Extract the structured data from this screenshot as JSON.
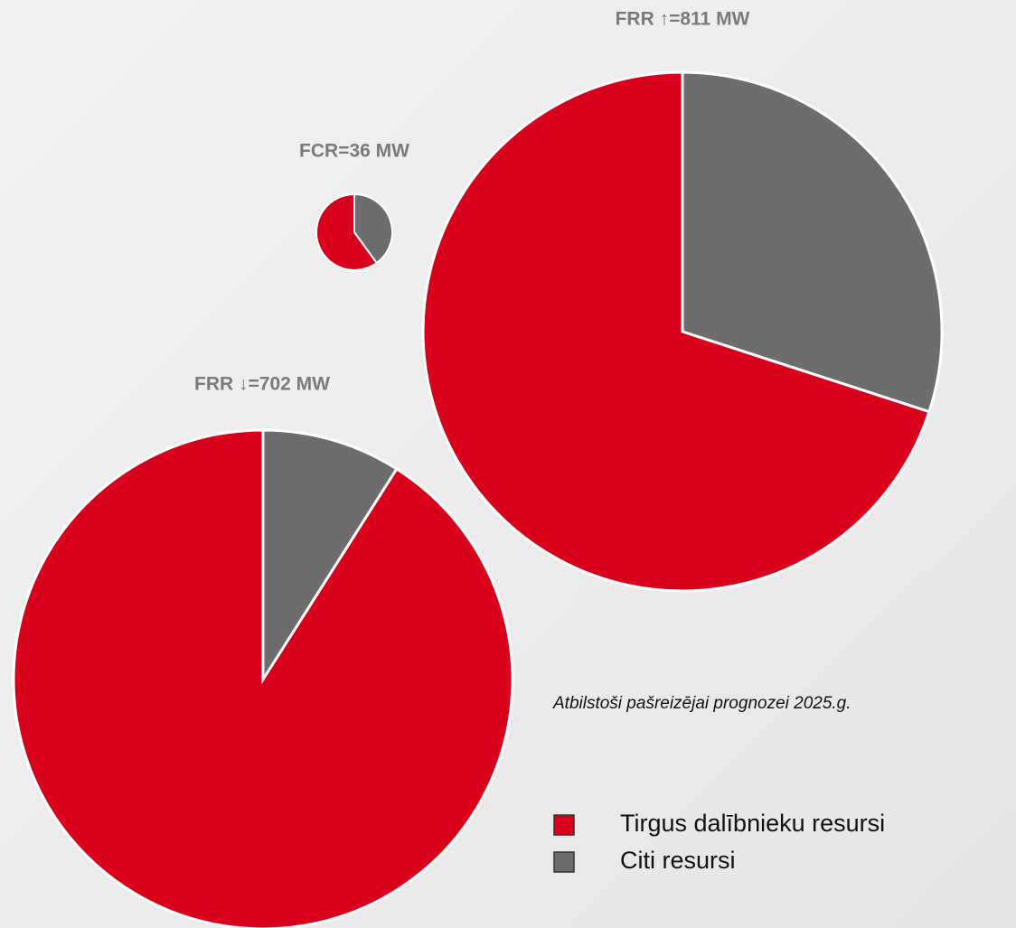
{
  "chart_data": [
    {
      "type": "pie",
      "title": "FCR=36 MW",
      "categories": [
        "Tirgus dalībnieku resursi",
        "Citi resursi"
      ],
      "values": [
        60,
        40
      ],
      "colors": [
        "#d9001b",
        "#6d6d6d"
      ]
    },
    {
      "type": "pie",
      "title": "FRR ↑=811 MW",
      "categories": [
        "Tirgus dalībnieku resursi",
        "Citi resursi"
      ],
      "values": [
        70,
        30
      ],
      "colors": [
        "#d9001b",
        "#6d6d6d"
      ]
    },
    {
      "type": "pie",
      "title": "FRR ↓=702 MW",
      "categories": [
        "Tirgus dalībnieku resursi",
        "Citi resursi"
      ],
      "values": [
        91,
        9
      ],
      "colors": [
        "#d9001b",
        "#6d6d6d"
      ]
    }
  ],
  "annotation": "Atbilstoši pašreizējai prognozei 2025.g."
}
